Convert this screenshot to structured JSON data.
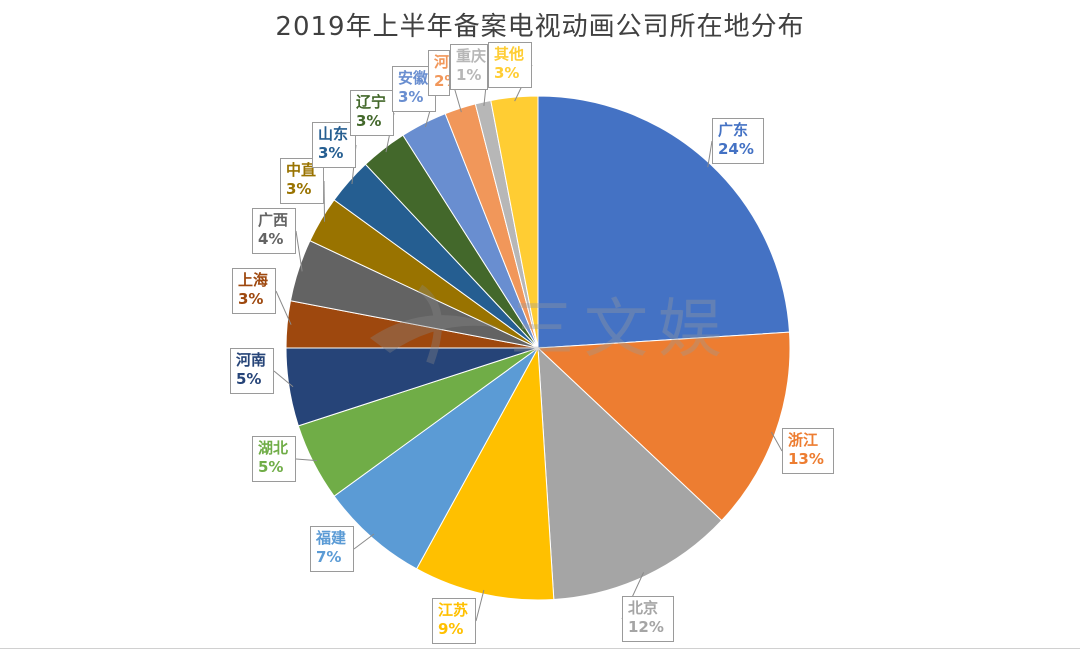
{
  "chart_data": {
    "type": "pie",
    "title": "2019年上半年备案电视动画公司所在地分布",
    "slices": [
      {
        "name": "广东",
        "value": 24,
        "label": "24%",
        "color": "#4472C4"
      },
      {
        "name": "浙江",
        "value": 13,
        "label": "13%",
        "color": "#ED7D31"
      },
      {
        "name": "北京",
        "value": 12,
        "label": "12%",
        "color": "#A5A5A5"
      },
      {
        "name": "江苏",
        "value": 9,
        "label": "9%",
        "color": "#FFC000"
      },
      {
        "name": "福建",
        "value": 7,
        "label": "7%",
        "color": "#5B9BD5"
      },
      {
        "name": "湖北",
        "value": 5,
        "label": "5%",
        "color": "#70AD47"
      },
      {
        "name": "河南",
        "value": 5,
        "label": "5%",
        "color": "#264478"
      },
      {
        "name": "上海",
        "value": 3,
        "label": "3%",
        "color": "#9E480E"
      },
      {
        "name": "广西",
        "value": 4,
        "label": "4%",
        "color": "#636363"
      },
      {
        "name": "中直",
        "value": 3,
        "label": "3%",
        "color": "#997300"
      },
      {
        "name": "山东",
        "value": 3,
        "label": "3%",
        "color": "#255E91"
      },
      {
        "name": "辽宁",
        "value": 3,
        "label": "3%",
        "color": "#43682B"
      },
      {
        "name": "安徽",
        "value": 3,
        "label": "3%",
        "color": "#698ED0"
      },
      {
        "name": "河北",
        "value": 2,
        "label": "2%",
        "color": "#F1975A"
      },
      {
        "name": "重庆",
        "value": 1,
        "label": "1%",
        "color": "#B7B7B7"
      },
      {
        "name": "其他",
        "value": 3,
        "label": "3%",
        "color": "#FFCD33"
      }
    ]
  },
  "watermark": {
    "text": "三文娱"
  }
}
